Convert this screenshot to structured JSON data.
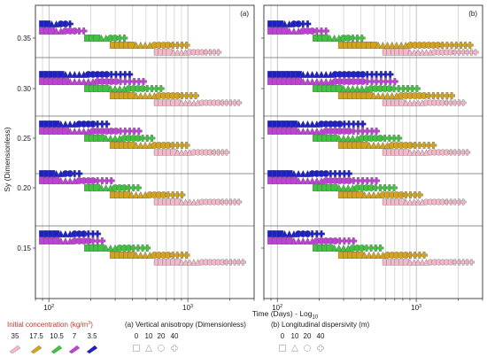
{
  "chart_data": {
    "type": "scatter",
    "ylabel": "Sy (Dimensionless)",
    "xlabel": "Time (Days) - Log",
    "xlabel_subscript": "10",
    "x_scale": "log",
    "xlim": [
      80,
      3000
    ],
    "x_tick_labels": [
      {
        "value": 100,
        "base": "10",
        "exp": "2"
      },
      {
        "value": 1000,
        "base": "10",
        "exp": "3"
      }
    ],
    "y_ticks": [
      "0.15",
      "0.20",
      "0.25",
      "0.30",
      "0.35"
    ],
    "y_values": [
      0.15,
      0.2,
      0.25,
      0.3,
      0.35
    ],
    "panels": [
      {
        "tag": "(a)",
        "grouping": "vertical anisotropy",
        "groups": [
          {
            "sy": 0.35,
            "rows": [
              {
                "conc": 3.5,
                "start": 90,
                "end": 150
              },
              {
                "conc": 7,
                "start": 90,
                "end": 190
              },
              {
                "conc": 10.5,
                "start": 190,
                "end": 360
              },
              {
                "conc": 17.5,
                "start": 290,
                "end": 1000
              },
              {
                "conc": 35,
                "start": 600,
                "end": 1750
              }
            ]
          },
          {
            "sy": 0.3,
            "rows": [
              {
                "conc": 3.5,
                "start": 90,
                "end": 410
              },
              {
                "conc": 7,
                "start": 90,
                "end": 500
              },
              {
                "conc": 10.5,
                "start": 190,
                "end": 650
              },
              {
                "conc": 17.5,
                "start": 290,
                "end": 1200
              },
              {
                "conc": 35,
                "start": 600,
                "end": 2400
              }
            ]
          },
          {
            "sy": 0.25,
            "rows": [
              {
                "conc": 3.5,
                "start": 90,
                "end": 280
              },
              {
                "conc": 7,
                "start": 90,
                "end": 460
              },
              {
                "conc": 10.5,
                "start": 190,
                "end": 580
              },
              {
                "conc": 17.5,
                "start": 290,
                "end": 1000
              },
              {
                "conc": 35,
                "start": 600,
                "end": 2000
              }
            ]
          },
          {
            "sy": 0.2,
            "rows": [
              {
                "conc": 3.5,
                "start": 90,
                "end": 175
              },
              {
                "conc": 7,
                "start": 90,
                "end": 300
              },
              {
                "conc": 10.5,
                "start": 190,
                "end": 440
              },
              {
                "conc": 17.5,
                "start": 290,
                "end": 920
              },
              {
                "conc": 35,
                "start": 600,
                "end": 2400
              }
            ]
          },
          {
            "sy": 0.15,
            "rows": [
              {
                "conc": 3.5,
                "start": 90,
                "end": 230
              },
              {
                "conc": 7,
                "start": 90,
                "end": 260
              },
              {
                "conc": 10.5,
                "start": 190,
                "end": 520
              },
              {
                "conc": 17.5,
                "start": 290,
                "end": 1000
              },
              {
                "conc": 35,
                "start": 600,
                "end": 2600
              }
            ]
          }
        ]
      },
      {
        "tag": "(b)",
        "grouping": "longitudinal dispersivity",
        "groups": [
          {
            "sy": 0.35,
            "rows": [
              {
                "conc": 3.5,
                "start": 90,
                "end": 175
              },
              {
                "conc": 7,
                "start": 90,
                "end": 230
              },
              {
                "conc": 10.5,
                "start": 190,
                "end": 420
              },
              {
                "conc": 17.5,
                "start": 290,
                "end": 2500
              },
              {
                "conc": 35,
                "start": 600,
                "end": 2700
              }
            ]
          },
          {
            "sy": 0.3,
            "rows": [
              {
                "conc": 3.5,
                "start": 90,
                "end": 700
              },
              {
                "conc": 7,
                "start": 90,
                "end": 750
              },
              {
                "conc": 10.5,
                "start": 190,
                "end": 1050
              },
              {
                "conc": 17.5,
                "start": 290,
                "end": 1800
              },
              {
                "conc": 35,
                "start": 600,
                "end": 2200
              }
            ]
          },
          {
            "sy": 0.25,
            "rows": [
              {
                "conc": 3.5,
                "start": 90,
                "end": 420
              },
              {
                "conc": 7,
                "start": 90,
                "end": 520
              },
              {
                "conc": 10.5,
                "start": 190,
                "end": 800
              },
              {
                "conc": 17.5,
                "start": 290,
                "end": 1400
              },
              {
                "conc": 35,
                "start": 600,
                "end": 2400
              }
            ]
          },
          {
            "sy": 0.2,
            "rows": [
              {
                "conc": 3.5,
                "start": 90,
                "end": 330
              },
              {
                "conc": 7,
                "start": 90,
                "end": 520
              },
              {
                "conc": 10.5,
                "start": 190,
                "end": 700
              },
              {
                "conc": 17.5,
                "start": 290,
                "end": 1100
              },
              {
                "conc": 35,
                "start": 600,
                "end": 2300
              }
            ]
          },
          {
            "sy": 0.15,
            "rows": [
              {
                "conc": 3.5,
                "start": 90,
                "end": 220
              },
              {
                "conc": 7,
                "start": 90,
                "end": 380
              },
              {
                "conc": 10.5,
                "start": 190,
                "end": 560
              },
              {
                "conc": 17.5,
                "start": 290,
                "end": 1200
              },
              {
                "conc": 35,
                "start": 600,
                "end": 2600
              }
            ]
          }
        ]
      }
    ],
    "concentration_colors": {
      "35": "#f4b8c8",
      "17.5": "#d4a31e",
      "10.5": "#3fc43f",
      "7": "#c040d8",
      "3.5": "#1f1fc8"
    },
    "legend": {
      "concentration": {
        "title": "Initial concentration (kg/m",
        "title_sup": "3",
        "title_end": ")",
        "items": [
          {
            "label": "35",
            "color": "#f4b8c8"
          },
          {
            "label": "17.5",
            "color": "#d4a31e"
          },
          {
            "label": "10.5",
            "color": "#3fc43f"
          },
          {
            "label": "7",
            "color": "#c040d8"
          },
          {
            "label": "3.5",
            "color": "#1f1fc8"
          }
        ]
      },
      "anisotropy": {
        "title": "(a)  Vertical anisotropy (Dimensionless)",
        "items": [
          {
            "label": "0",
            "marker": "square"
          },
          {
            "label": "10",
            "marker": "triangle"
          },
          {
            "label": "20",
            "marker": "circle"
          },
          {
            "label": "40",
            "marker": "cross"
          }
        ]
      },
      "dispersivity": {
        "title": "(b)  Longitudinal dispersivity (m)",
        "items": [
          {
            "label": "0",
            "marker": "square"
          },
          {
            "label": "10",
            "marker": "triangle"
          },
          {
            "label": "20",
            "marker": "circle"
          },
          {
            "label": "40",
            "marker": "cross"
          }
        ]
      }
    }
  }
}
